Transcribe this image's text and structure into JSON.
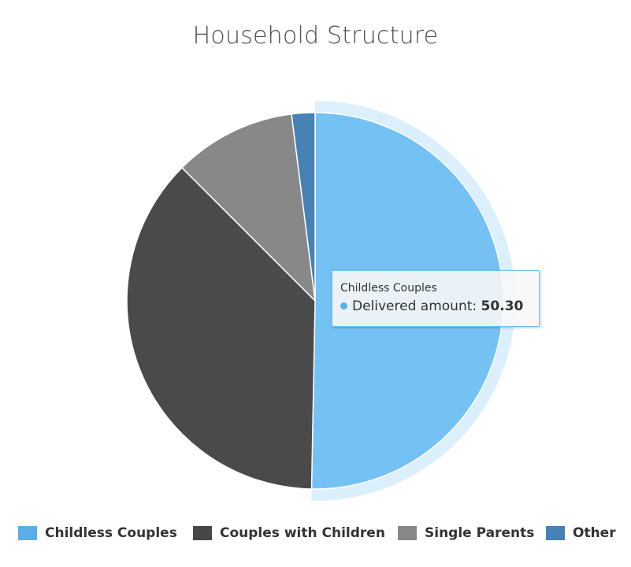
{
  "chart_data": {
    "type": "pie",
    "title": "Household Structure",
    "series_name": "Delivered amount",
    "slices": [
      {
        "name": "Childless Couples",
        "value": 50.3,
        "color": "#74c1f3"
      },
      {
        "name": "Couples with Children",
        "value": 37.2,
        "color": "#4a4a4a"
      },
      {
        "name": "Single Parents",
        "value": 10.5,
        "color": "#888888"
      },
      {
        "name": "Other",
        "value": 2.0,
        "color": "#4682b4"
      }
    ],
    "hovered_slice": "Childless Couples",
    "legend_position": "bottom"
  },
  "tooltip": {
    "name": "Childless Couples",
    "series_label": "Delivered amount",
    "value_text": "50.30",
    "dot_color": "#5aaee8"
  }
}
